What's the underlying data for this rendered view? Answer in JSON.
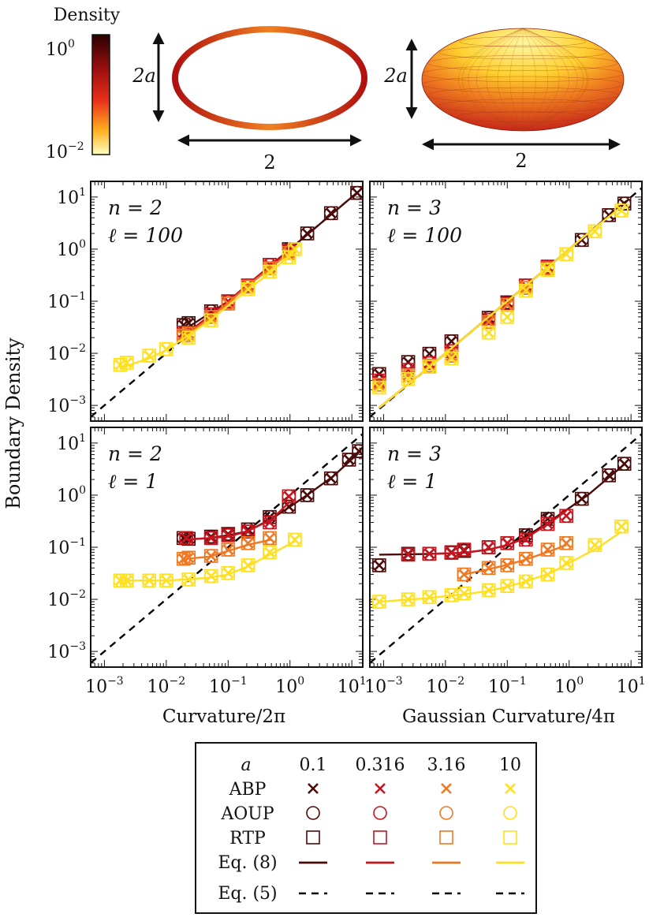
{
  "colors": {
    "dark": "#4a0a0a",
    "red": "#c8141e",
    "orange": "#f07820",
    "yellow": "#ffe020",
    "eq5": "#000000"
  },
  "colorbar": {
    "title": "Density",
    "tick_top": "10",
    "tick_top_exp": "0",
    "tick_bottom": "10",
    "tick_bottom_exp": "−2"
  },
  "shapes": {
    "ellipse_height_label": "2a",
    "ellipse_width_label": "2",
    "spheroid_height_label": "2a",
    "spheroid_width_label": "2"
  },
  "axes": {
    "ylabel": "Boundary Density",
    "xlabel_left": "Curvature/2π",
    "xlabel_right": "Gaussian Curvature/4π",
    "y_ticks": [
      "10^1",
      "10^0",
      "10^-1",
      "10^-2",
      "10^-3"
    ],
    "x_ticks": [
      "10^-3",
      "10^-2",
      "10^-1",
      "10^0",
      "10^1"
    ]
  },
  "legend": {
    "header": "a",
    "a_values": [
      "0.1",
      "0.316",
      "3.16",
      "10"
    ],
    "rows": [
      "ABP",
      "AOUP",
      "RTP",
      "Eq. (8)",
      "Eq. (5)"
    ]
  },
  "chart_data": [
    {
      "type": "scatter",
      "panel": "top-left",
      "label_n": "n = 2",
      "label_l": "ℓ = 100",
      "xscale": "log",
      "yscale": "log",
      "xlim": [
        0.0006,
        15
      ],
      "ylim": [
        0.0005,
        20
      ],
      "eq5": {
        "x": [
          0.0006,
          15
        ],
        "y": [
          0.0006,
          15
        ]
      },
      "series": [
        {
          "a": "0.1",
          "x": [
            0.019,
            0.023,
            0.053,
            0.1,
            0.21,
            0.47,
            0.96,
            1.9,
            4.6,
            12.2
          ],
          "y": [
            0.035,
            0.038,
            0.064,
            0.098,
            0.2,
            0.5,
            1.0,
            2.0,
            4.9,
            12.0
          ],
          "fit_x": [
            0.019,
            0.05,
            0.1,
            0.2,
            0.5,
            1.0,
            2.0,
            5.0,
            13.0
          ],
          "fit_y": [
            0.028,
            0.058,
            0.1,
            0.2,
            0.5,
            1.0,
            2.0,
            5.0,
            13.0
          ]
        },
        {
          "a": "0.316",
          "x": [
            0.019,
            0.053,
            0.1,
            0.21,
            0.47,
            0.96
          ],
          "y": [
            0.025,
            0.056,
            0.1,
            0.2,
            0.5,
            0.93
          ],
          "fit_x": [
            0.019,
            0.05,
            0.1,
            0.2,
            0.5,
            1.0
          ],
          "fit_y": [
            0.022,
            0.052,
            0.1,
            0.2,
            0.5,
            0.95
          ]
        },
        {
          "a": "3.16",
          "x": [
            0.019,
            0.023,
            0.053,
            0.1,
            0.21,
            0.47,
            0.96
          ],
          "y": [
            0.022,
            0.024,
            0.05,
            0.09,
            0.19,
            0.43,
            0.85
          ],
          "fit_x": [
            0.019,
            0.05,
            0.1,
            0.2,
            0.5,
            1.0
          ],
          "fit_y": [
            0.02,
            0.048,
            0.092,
            0.19,
            0.45,
            0.88
          ]
        },
        {
          "a": "10",
          "x": [
            0.0018,
            0.0023,
            0.0053,
            0.01,
            0.023,
            0.053,
            0.21,
            0.47,
            0.96,
            1.2
          ],
          "y": [
            0.006,
            0.0066,
            0.009,
            0.012,
            0.02,
            0.043,
            0.17,
            0.37,
            0.7,
            1.0
          ],
          "fit_x": [
            0.0018,
            0.005,
            0.01,
            0.05,
            0.2,
            0.5,
            1.2
          ],
          "fit_y": [
            0.0052,
            0.0078,
            0.0115,
            0.042,
            0.16,
            0.37,
            0.95
          ]
        }
      ]
    },
    {
      "type": "scatter",
      "panel": "top-right",
      "label_n": "n = 3",
      "label_l": "ℓ = 100",
      "xscale": "log",
      "yscale": "log",
      "xlim": [
        0.0006,
        15
      ],
      "ylim": [
        0.0005,
        20
      ],
      "eq5": {
        "x": [
          0.0006,
          15
        ],
        "y": [
          0.0006,
          15
        ]
      },
      "series": [
        {
          "a": "0.1",
          "x": [
            0.00085,
            0.0025,
            0.0055,
            0.0125,
            0.05,
            0.1,
            0.2,
            0.45,
            1.6,
            4.4,
            7.8
          ],
          "y": [
            0.004,
            0.0068,
            0.0098,
            0.017,
            0.048,
            0.095,
            0.2,
            0.46,
            1.5,
            4.5,
            7.5
          ],
          "fit_x": [
            0.00085,
            0.005,
            0.02,
            0.1,
            0.5,
            2.0,
            8.0
          ],
          "fit_y": [
            0.0009,
            0.005,
            0.02,
            0.1,
            0.5,
            2.0,
            8.0
          ]
        },
        {
          "a": "0.316",
          "x": [
            0.00085,
            0.0025,
            0.0055,
            0.0125,
            0.05,
            0.1,
            0.2,
            0.45
          ],
          "y": [
            0.003,
            0.0048,
            0.0065,
            0.011,
            0.044,
            0.09,
            0.2,
            0.45
          ],
          "fit_x": [
            0.00085,
            0.005,
            0.02,
            0.1,
            0.45
          ],
          "fit_y": [
            0.0009,
            0.005,
            0.02,
            0.1,
            0.45
          ]
        },
        {
          "a": "3.16",
          "x": [
            0.00085,
            0.0025,
            0.0055,
            0.0125,
            0.05,
            0.1,
            0.2,
            0.45
          ],
          "y": [
            0.0025,
            0.0038,
            0.0058,
            0.009,
            0.04,
            0.085,
            0.18,
            0.43
          ],
          "fit_x": [
            0.00085,
            0.005,
            0.02,
            0.1,
            0.45
          ],
          "fit_y": [
            0.0009,
            0.005,
            0.02,
            0.1,
            0.45
          ]
        },
        {
          "a": "10",
          "x": [
            0.00085,
            0.0025,
            0.0055,
            0.0125,
            0.05,
            0.1,
            0.2,
            0.45,
            0.9,
            2.6,
            7.0
          ],
          "y": [
            0.0022,
            0.0032,
            0.0055,
            0.008,
            0.025,
            0.05,
            0.16,
            0.4,
            0.8,
            2.2,
            5.5
          ],
          "fit_x": [
            0.00085,
            0.005,
            0.02,
            0.1,
            0.5,
            2.0,
            7.0
          ],
          "fit_y": [
            0.0009,
            0.005,
            0.02,
            0.1,
            0.5,
            2.0,
            6.5
          ]
        }
      ]
    },
    {
      "type": "scatter",
      "panel": "bottom-left",
      "label_n": "n = 2",
      "label_l": "ℓ = 1",
      "xscale": "log",
      "yscale": "log",
      "xlim": [
        0.0006,
        15
      ],
      "ylim": [
        0.0005,
        20
      ],
      "eq5": {
        "x": [
          0.0006,
          15
        ],
        "y": [
          0.0006,
          15
        ]
      },
      "series": [
        {
          "a": "0.1",
          "x": [
            0.019,
            0.023,
            0.053,
            0.1,
            0.21,
            0.47,
            0.96,
            1.9,
            4.6,
            9.0,
            13.0
          ],
          "y": [
            0.15,
            0.145,
            0.16,
            0.18,
            0.22,
            0.38,
            0.6,
            1.0,
            2.1,
            4.8,
            7.0
          ],
          "fit_x": [
            0.019,
            0.05,
            0.1,
            0.2,
            0.5,
            1.0,
            2.0,
            5.0,
            13.0
          ],
          "fit_y": [
            0.14,
            0.15,
            0.17,
            0.2,
            0.35,
            0.6,
            1.05,
            2.3,
            6.5
          ]
        },
        {
          "a": "0.316",
          "x": [
            0.021,
            0.053,
            0.1,
            0.21,
            0.47,
            0.96
          ],
          "y": [
            0.15,
            0.15,
            0.17,
            0.2,
            0.3,
            0.95
          ],
          "fit_x": [
            0.02,
            0.05,
            0.1,
            0.2,
            0.5,
            1.0
          ],
          "fit_y": [
            0.14,
            0.15,
            0.16,
            0.2,
            0.34,
            0.75
          ]
        },
        {
          "a": "3.16",
          "x": [
            0.019,
            0.023,
            0.053,
            0.1,
            0.21,
            0.47
          ],
          "y": [
            0.06,
            0.063,
            0.068,
            0.09,
            0.12,
            0.15
          ],
          "fit_x": [
            0.019,
            0.05,
            0.1,
            0.2,
            0.5
          ],
          "fit_y": [
            0.059,
            0.066,
            0.085,
            0.11,
            0.14
          ]
        },
        {
          "a": "10",
          "x": [
            0.0018,
            0.0023,
            0.0053,
            0.01,
            0.023,
            0.053,
            0.1,
            0.21,
            0.47,
            1.2
          ],
          "y": [
            0.023,
            0.023,
            0.023,
            0.023,
            0.024,
            0.028,
            0.032,
            0.045,
            0.08,
            0.14
          ],
          "fit_x": [
            0.0018,
            0.005,
            0.01,
            0.02,
            0.05,
            0.1,
            0.2,
            0.5,
            1.2
          ],
          "fit_y": [
            0.023,
            0.023,
            0.023,
            0.024,
            0.026,
            0.03,
            0.042,
            0.075,
            0.13
          ]
        }
      ]
    },
    {
      "type": "scatter",
      "panel": "bottom-right",
      "label_n": "n = 3",
      "label_l": "ℓ = 1",
      "xscale": "log",
      "yscale": "log",
      "xlim": [
        0.0006,
        15
      ],
      "ylim": [
        0.0005,
        20
      ],
      "eq5": {
        "x": [
          0.0006,
          15
        ],
        "y": [
          0.0006,
          15
        ]
      },
      "series": [
        {
          "a": "0.1",
          "x": [
            0.00085,
            0.0025,
            0.0055,
            0.0125,
            0.02,
            0.05,
            0.1,
            0.2,
            0.45,
            1.6,
            4.4,
            7.8
          ],
          "y": [
            0.045,
            0.075,
            0.075,
            0.08,
            0.085,
            0.1,
            0.12,
            0.17,
            0.35,
            0.85,
            2.4,
            4.0
          ],
          "fit_x": [
            0.00085,
            0.005,
            0.02,
            0.05,
            0.1,
            0.2,
            0.5,
            2.0,
            8.0
          ],
          "fit_y": [
            0.072,
            0.074,
            0.078,
            0.09,
            0.11,
            0.16,
            0.32,
            1.0,
            4.0
          ]
        },
        {
          "a": "0.316",
          "x": [
            0.0025,
            0.0055,
            0.0125,
            0.02,
            0.05,
            0.1,
            0.2,
            0.45,
            0.9
          ],
          "y": [
            0.072,
            0.075,
            0.078,
            0.09,
            0.1,
            0.12,
            0.14,
            0.28,
            0.4
          ],
          "fit_x": [
            0.005,
            0.02,
            0.05,
            0.1,
            0.2,
            0.5,
            0.9
          ],
          "fit_y": [
            0.074,
            0.078,
            0.09,
            0.11,
            0.15,
            0.3,
            0.5
          ]
        },
        {
          "a": "3.16",
          "x": [
            0.02,
            0.05,
            0.1,
            0.2,
            0.45,
            0.9
          ],
          "y": [
            0.03,
            0.04,
            0.045,
            0.06,
            0.09,
            0.12
          ],
          "fit_x": [
            0.02,
            0.05,
            0.1,
            0.2,
            0.5,
            0.9
          ],
          "fit_y": [
            0.03,
            0.038,
            0.046,
            0.058,
            0.085,
            0.11
          ]
        },
        {
          "a": "10",
          "x": [
            0.00085,
            0.0025,
            0.0055,
            0.0125,
            0.02,
            0.05,
            0.1,
            0.2,
            0.45,
            0.9,
            2.6,
            7.0
          ],
          "y": [
            0.009,
            0.01,
            0.011,
            0.012,
            0.013,
            0.015,
            0.018,
            0.022,
            0.03,
            0.05,
            0.11,
            0.25
          ],
          "fit_x": [
            0.00085,
            0.005,
            0.02,
            0.05,
            0.1,
            0.2,
            0.5,
            1.0,
            3.0,
            7.0
          ],
          "fit_y": [
            0.009,
            0.0105,
            0.0125,
            0.0145,
            0.0175,
            0.022,
            0.032,
            0.05,
            0.1,
            0.2
          ]
        }
      ]
    }
  ]
}
